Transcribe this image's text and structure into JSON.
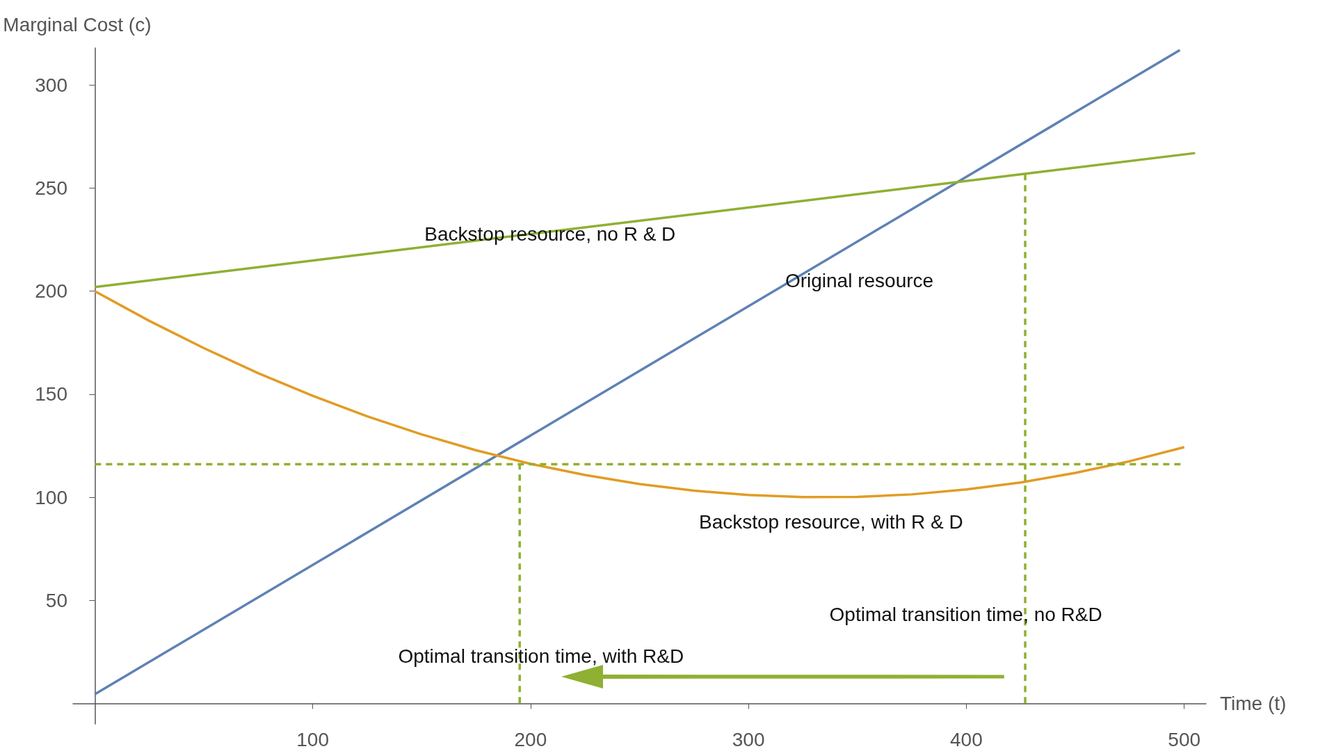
{
  "chart_data": {
    "type": "line",
    "xlabel": "Time (t)",
    "ylabel": "Marginal Cost (c)",
    "xlim": [
      -10,
      510
    ],
    "ylim": [
      -10,
      318
    ],
    "xticks": [
      100,
      200,
      300,
      400,
      500
    ],
    "yticks": [
      50,
      100,
      150,
      200,
      250,
      300
    ],
    "marker": "none",
    "series": [
      {
        "color": "#5e81b5",
        "x": [
          0,
          498
        ],
        "values": [
          4.4,
          317
        ]
      },
      {
        "color": "#8fb032",
        "x": [
          0,
          505
        ],
        "values": [
          202,
          267
        ]
      },
      {
        "color": "#e19c24",
        "x": [
          0,
          25,
          50,
          75,
          100,
          125,
          150,
          175,
          200,
          225,
          250,
          275,
          300,
          325,
          350,
          375,
          400,
          425,
          450,
          475,
          500
        ],
        "values": [
          200,
          185.6,
          172.4,
          160.2,
          149.2,
          139.3,
          130.5,
          122.8,
          116.2,
          110.8,
          106.4,
          103.2,
          101.1,
          100.1,
          100.2,
          101.4,
          103.8,
          107.2,
          111.8,
          117.5,
          124.3
        ]
      },
      {
        "color": "#8fb032",
        "line_style": "dashed",
        "x": [
          0,
          500
        ],
        "values": [
          116,
          116
        ]
      },
      {
        "color": "#8fb032",
        "line_style": "dashed",
        "x": [
          195,
          195
        ],
        "values": [
          0,
          116
        ]
      },
      {
        "color": "#8fb032",
        "line_style": "dashed",
        "x": [
          427,
          427
        ],
        "values": [
          0,
          257
        ]
      }
    ],
    "annotations": [
      "Backstop resource, no R & D",
      "Original resource",
      "Backstop resource, with R & D",
      "Optimal transition time, no R&D",
      "Optimal transition time, with R&D"
    ]
  }
}
